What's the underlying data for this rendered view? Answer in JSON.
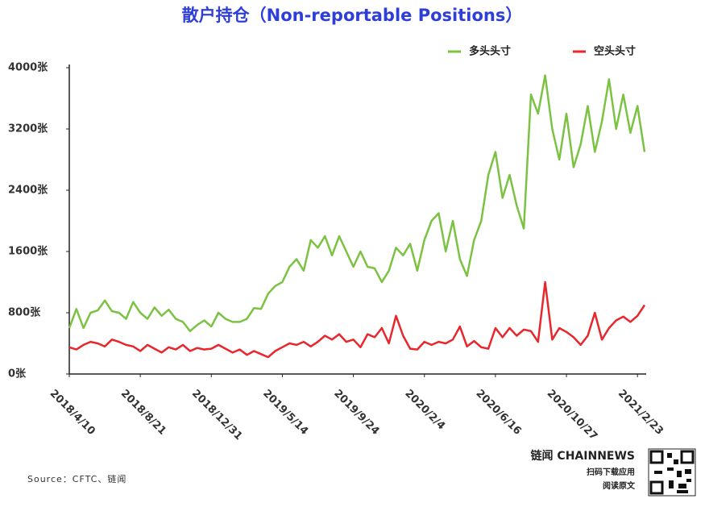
{
  "chart_data": {
    "type": "line",
    "title": "散户持仓（Non-reportable Positions）",
    "source": "Source：CFTC、链闻",
    "brand": {
      "name": "链闻 CHAINNEWS",
      "line1": "扫码下载应用",
      "line2": "阅读原文"
    },
    "categories": [
      "2018/4/10",
      null,
      null,
      null,
      null,
      null,
      null,
      null,
      null,
      null,
      "2018/8/21",
      null,
      null,
      null,
      null,
      null,
      null,
      null,
      null,
      null,
      "2018/12/31",
      null,
      null,
      null,
      null,
      null,
      null,
      null,
      null,
      null,
      "2019/5/14",
      null,
      null,
      null,
      null,
      null,
      null,
      null,
      null,
      null,
      "2019/9/24",
      null,
      null,
      null,
      null,
      null,
      null,
      null,
      null,
      null,
      "2020/2/4",
      null,
      null,
      null,
      null,
      null,
      null,
      null,
      null,
      null,
      "2020/6/16",
      null,
      null,
      null,
      null,
      null,
      null,
      null,
      null,
      null,
      "2020/10/27",
      null,
      null,
      null,
      null,
      null,
      null,
      null,
      null,
      null,
      "2021/2/23",
      null
    ],
    "series": [
      {
        "name": "多头头寸",
        "color": "#7cc242",
        "values": [
          600,
          850,
          600,
          800,
          830,
          960,
          820,
          800,
          720,
          940,
          800,
          720,
          870,
          760,
          840,
          720,
          680,
          560,
          640,
          700,
          620,
          800,
          720,
          680,
          680,
          720,
          860,
          850,
          1050,
          1150,
          1200,
          1400,
          1500,
          1350,
          1750,
          1650,
          1800,
          1550,
          1800,
          1600,
          1400,
          1600,
          1400,
          1380,
          1200,
          1350,
          1650,
          1550,
          1700,
          1350,
          1750,
          2000,
          2100,
          1600,
          2000,
          1500,
          1280,
          1750,
          2000,
          2600,
          2900,
          2300,
          2600,
          2200,
          1900,
          3650,
          3400,
          3900,
          3200,
          2800,
          3400,
          2700,
          3000,
          3500,
          2900,
          3300,
          3850,
          3200,
          3650,
          3150,
          3500,
          2900
        ]
      },
      {
        "name": "空头头寸",
        "color": "#e8262b",
        "values": [
          350,
          320,
          380,
          420,
          400,
          360,
          450,
          420,
          380,
          360,
          300,
          380,
          330,
          280,
          350,
          320,
          380,
          300,
          340,
          320,
          330,
          380,
          330,
          280,
          320,
          250,
          300,
          260,
          220,
          300,
          350,
          400,
          380,
          420,
          360,
          420,
          500,
          450,
          520,
          420,
          450,
          350,
          520,
          480,
          600,
          400,
          760,
          500,
          330,
          320,
          420,
          380,
          420,
          400,
          450,
          620,
          360,
          430,
          350,
          330,
          600,
          480,
          600,
          500,
          580,
          560,
          420,
          1200,
          450,
          600,
          550,
          480,
          380,
          500,
          800,
          450,
          600,
          700,
          750,
          680,
          760,
          900
        ]
      }
    ],
    "ylim": [
      0,
      4000
    ],
    "yticks": [
      {
        "value": 0,
        "label": "0张"
      },
      {
        "value": 800,
        "label": "800张"
      },
      {
        "value": 1600,
        "label": "1600张"
      },
      {
        "value": 2400,
        "label": "2400张"
      },
      {
        "value": 3200,
        "label": "3200张"
      },
      {
        "value": 4000,
        "label": "4000张"
      }
    ],
    "legend": "top-right"
  }
}
